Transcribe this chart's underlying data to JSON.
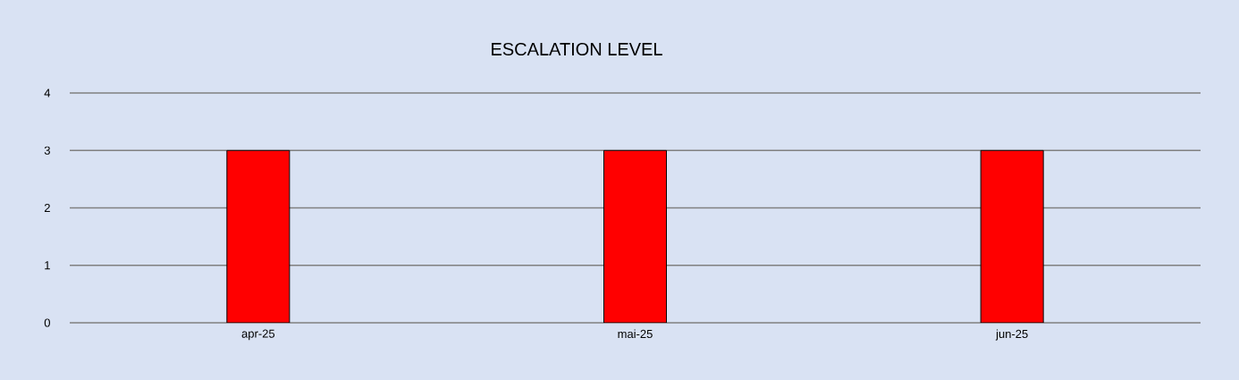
{
  "chart_data": {
    "type": "bar",
    "title": "ESCALATION LEVEL",
    "categories": [
      "apr-25",
      "mai-25",
      "jun-25"
    ],
    "values": [
      3,
      3,
      3
    ],
    "color": "#ff0000",
    "ylim": [
      0,
      4
    ],
    "yticks": [
      0,
      1,
      2,
      3,
      4
    ],
    "grid": "y"
  }
}
